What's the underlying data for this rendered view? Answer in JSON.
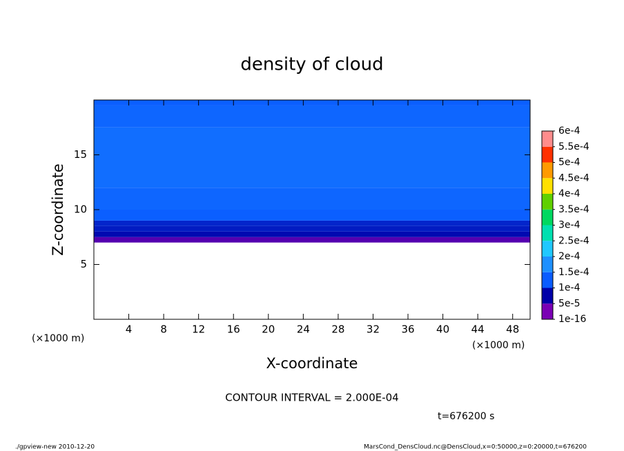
{
  "chart_data": {
    "type": "contour",
    "title": "density of cloud",
    "x_label": "X-coordinate",
    "y_label": "Z-coordinate",
    "x_unit": "(×1000 m)",
    "y_unit": "(×1000 m)",
    "xlim": [
      0,
      50
    ],
    "ylim": [
      0,
      20
    ],
    "xticks": [
      4,
      8,
      12,
      16,
      20,
      24,
      28,
      32,
      36,
      40,
      44,
      48
    ],
    "yticks": [
      5,
      10,
      15
    ],
    "z_edges": [
      7,
      7.5,
      8,
      8.5,
      9,
      10,
      12,
      17.5,
      19.5,
      20
    ],
    "values": [
      3e-05,
      6e-05,
      8e-05,
      9e-05,
      0.000105,
      0.00012,
      0.000135,
      0.00012,
      0.000105
    ],
    "levels": [
      {
        "value": 1e-16,
        "label": "1e-16"
      },
      {
        "value": 5e-05,
        "label": "5e-5"
      },
      {
        "value": 0.0001,
        "label": "1e-4"
      },
      {
        "value": 0.00015,
        "label": "1.5e-4"
      },
      {
        "value": 0.0002,
        "label": "2e-4"
      },
      {
        "value": 0.00025,
        "label": "2.5e-4"
      },
      {
        "value": 0.0003,
        "label": "3e-4"
      },
      {
        "value": 0.00035,
        "label": "3.5e-4"
      },
      {
        "value": 0.0004,
        "label": "4e-4"
      },
      {
        "value": 0.00045,
        "label": "4.5e-4"
      },
      {
        "value": 0.0005,
        "label": "5e-4"
      },
      {
        "value": 0.00055,
        "label": "5.5e-4"
      },
      {
        "value": 0.0006,
        "label": "6e-4"
      }
    ],
    "colors": [
      "#7a00b4",
      "#0000a8",
      "#0a5cff",
      "#1e90ff",
      "#20c8ff",
      "#00e0b0",
      "#00d860",
      "#60d000",
      "#ffe000",
      "#ff9a00",
      "#ff3000",
      "#ff8c8c"
    ],
    "contour_interval": "CONTOUR INTERVAL = 2.000E-04",
    "time": "t=676200 s",
    "footer_left": "./gpview-new  2010-12-20",
    "footer_right": "MarsCond_DensCloud.nc@DensCloud,x=0:50000,z=0:20000,t=676200"
  }
}
